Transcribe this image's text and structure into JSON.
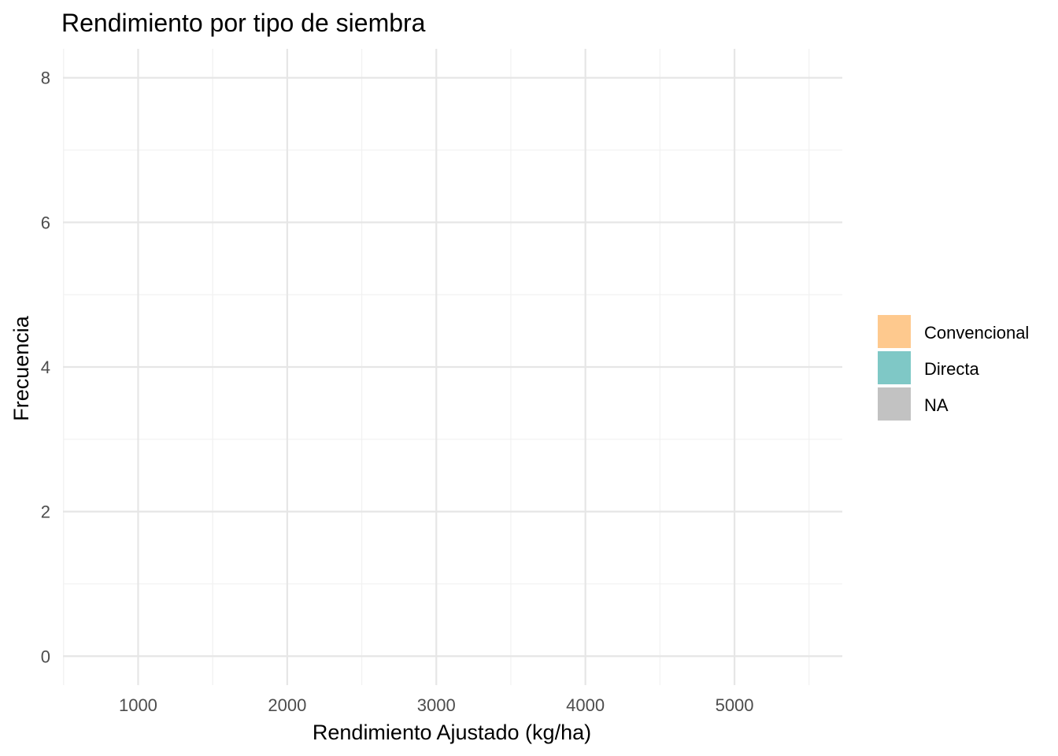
{
  "chart_data": {
    "type": "histogram",
    "title": "Rendimiento por tipo de siembra",
    "xlabel": "Rendimiento Ajustado (kg/ha)",
    "ylabel": "Frecuencia",
    "xlim": [
      496,
      5723
    ],
    "ylim": [
      -0.4,
      8.4
    ],
    "xticks": [
      1000,
      2000,
      3000,
      4000,
      5000
    ],
    "yticks": [
      0,
      2,
      4,
      6,
      8
    ],
    "bin_start": 720,
    "bin_width": 159.4,
    "bin_count": 30,
    "legend_position": "right",
    "grid": true,
    "series": [
      {
        "name": "Convencional",
        "color": "#FDB462",
        "counts": [
          0,
          0,
          0,
          0,
          0,
          0,
          0,
          0,
          0,
          0,
          0,
          0,
          0,
          0,
          0,
          0,
          0,
          0,
          0,
          0,
          0,
          0,
          0,
          0,
          0,
          0,
          0,
          0,
          0,
          0
        ]
      },
      {
        "name": "Directa",
        "color": "#4DB3B0",
        "counts": [
          0,
          0,
          0,
          0,
          0,
          0,
          0,
          0,
          0,
          0,
          0,
          0,
          0,
          0,
          0,
          0,
          0,
          0,
          0,
          0,
          0,
          0,
          0,
          0,
          0,
          0,
          0,
          0,
          0,
          0
        ]
      },
      {
        "name": "NA",
        "color": "#AAAAAA",
        "counts": [
          0,
          0,
          0,
          0,
          0,
          0,
          0,
          0,
          0,
          0,
          0,
          0,
          0,
          0,
          0,
          0,
          0,
          0,
          0,
          0,
          0,
          0,
          0,
          0,
          0,
          0,
          0,
          0,
          0,
          0
        ]
      }
    ]
  }
}
